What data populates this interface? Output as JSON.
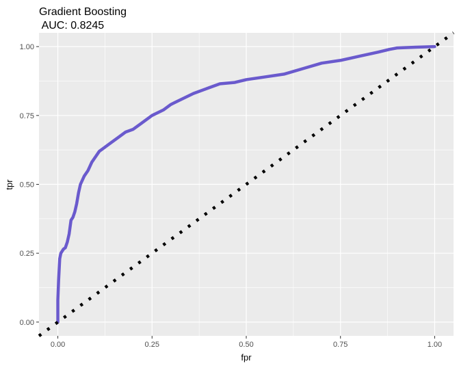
{
  "chart_data": {
    "type": "line",
    "title": "Gradient Boosting",
    "subtitle": " AUC: 0.8245",
    "xlabel": "fpr",
    "ylabel": "tpr",
    "xlim": [
      -0.05,
      1.05
    ],
    "ylim": [
      -0.05,
      1.05
    ],
    "x_ticks": [
      0.0,
      0.25,
      0.5,
      0.75,
      1.0
    ],
    "x_tick_labels": [
      "0.00",
      "0.25",
      "0.50",
      "0.75",
      "1.00"
    ],
    "y_ticks": [
      0.0,
      0.25,
      0.5,
      0.75,
      1.0
    ],
    "y_tick_labels": [
      "0.00",
      "0.25",
      "0.50",
      "0.75",
      "1.00"
    ],
    "grid": true,
    "legend": "none",
    "series": [
      {
        "kind": "roc",
        "color": "#6a5acd",
        "x": [
          0.0,
          0.0,
          0.002,
          0.005,
          0.008,
          0.015,
          0.02,
          0.025,
          0.03,
          0.035,
          0.04,
          0.045,
          0.05,
          0.055,
          0.06,
          0.07,
          0.08,
          0.09,
          0.1,
          0.11,
          0.12,
          0.14,
          0.16,
          0.18,
          0.2,
          0.22,
          0.25,
          0.28,
          0.3,
          0.33,
          0.36,
          0.4,
          0.43,
          0.47,
          0.5,
          0.55,
          0.6,
          0.65,
          0.7,
          0.75,
          0.8,
          0.85,
          0.88,
          0.9,
          0.95,
          1.0
        ],
        "y": [
          0.0,
          0.08,
          0.15,
          0.23,
          0.25,
          0.265,
          0.27,
          0.29,
          0.32,
          0.37,
          0.38,
          0.4,
          0.43,
          0.47,
          0.5,
          0.53,
          0.55,
          0.58,
          0.6,
          0.62,
          0.63,
          0.65,
          0.67,
          0.69,
          0.7,
          0.72,
          0.75,
          0.77,
          0.79,
          0.81,
          0.83,
          0.85,
          0.865,
          0.87,
          0.88,
          0.89,
          0.9,
          0.92,
          0.94,
          0.95,
          0.965,
          0.98,
          0.99,
          0.995,
          0.998,
          1.0
        ]
      },
      {
        "kind": "diagonal",
        "color": "#000000",
        "x": [
          -0.05,
          1.05
        ],
        "y": [
          -0.05,
          1.05
        ]
      }
    ]
  }
}
